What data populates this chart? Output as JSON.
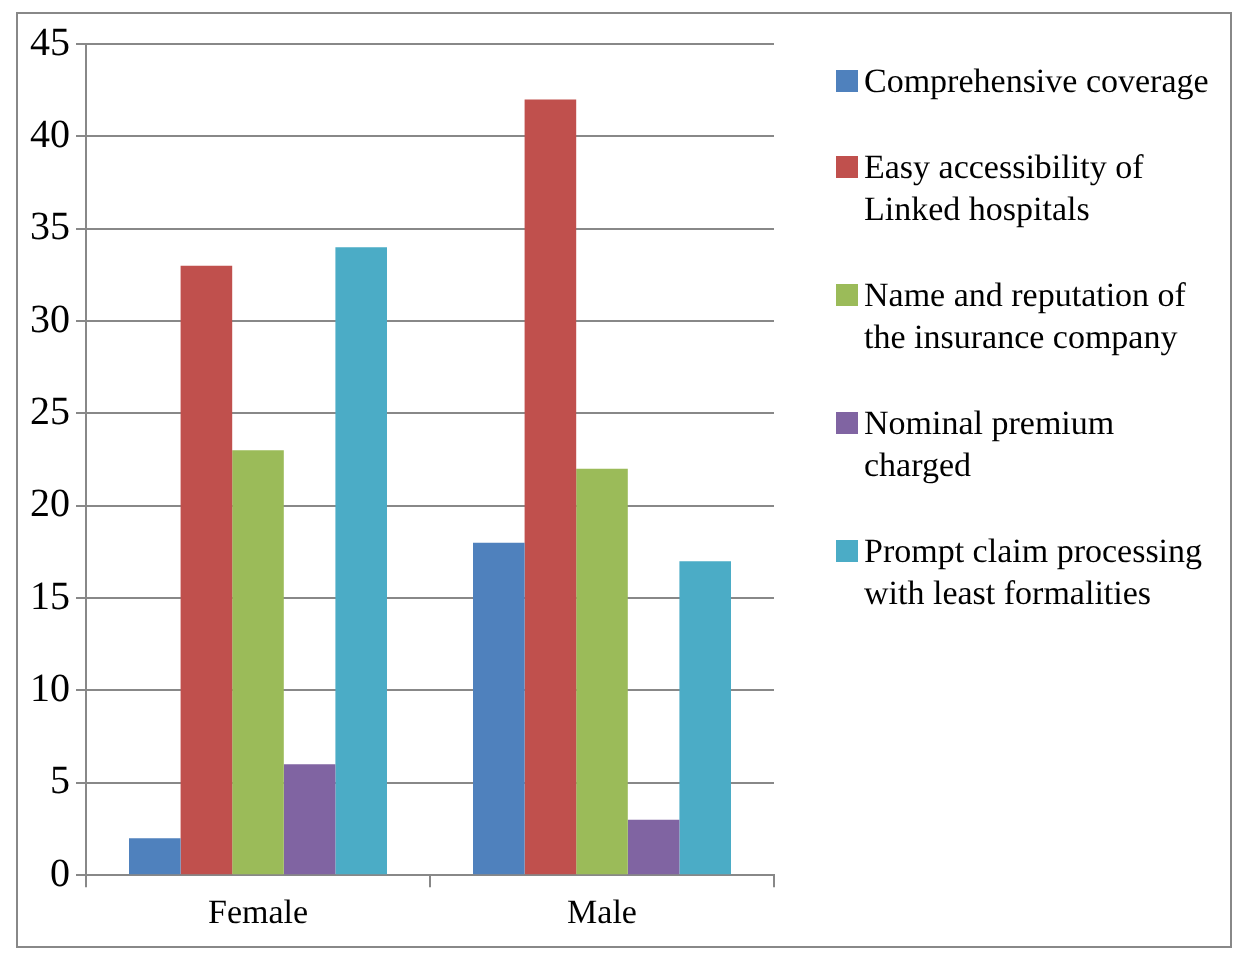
{
  "chart_data": {
    "type": "bar",
    "categories": [
      "Female",
      "Male"
    ],
    "series": [
      {
        "name": "Comprehensive coverage",
        "color": "#4f81bd",
        "values": [
          2,
          18
        ]
      },
      {
        "name": "Easy accessibility of Linked hospitals",
        "color": "#c0504d",
        "values": [
          33,
          42
        ]
      },
      {
        "name": "Name and reputation of the insurance company",
        "color": "#9bbb59",
        "values": [
          23,
          22
        ]
      },
      {
        "name": "Nominal premium charged",
        "color": "#8064a2",
        "values": [
          6,
          3
        ]
      },
      {
        "name": "Prompt claim processing with least formalities",
        "color": "#4bacc6",
        "values": [
          34,
          17
        ]
      }
    ],
    "ylim": [
      0,
      45
    ],
    "yticks": [
      0,
      5,
      10,
      15,
      20,
      25,
      30,
      35,
      40,
      45
    ],
    "grid": "y",
    "legend": "right"
  }
}
